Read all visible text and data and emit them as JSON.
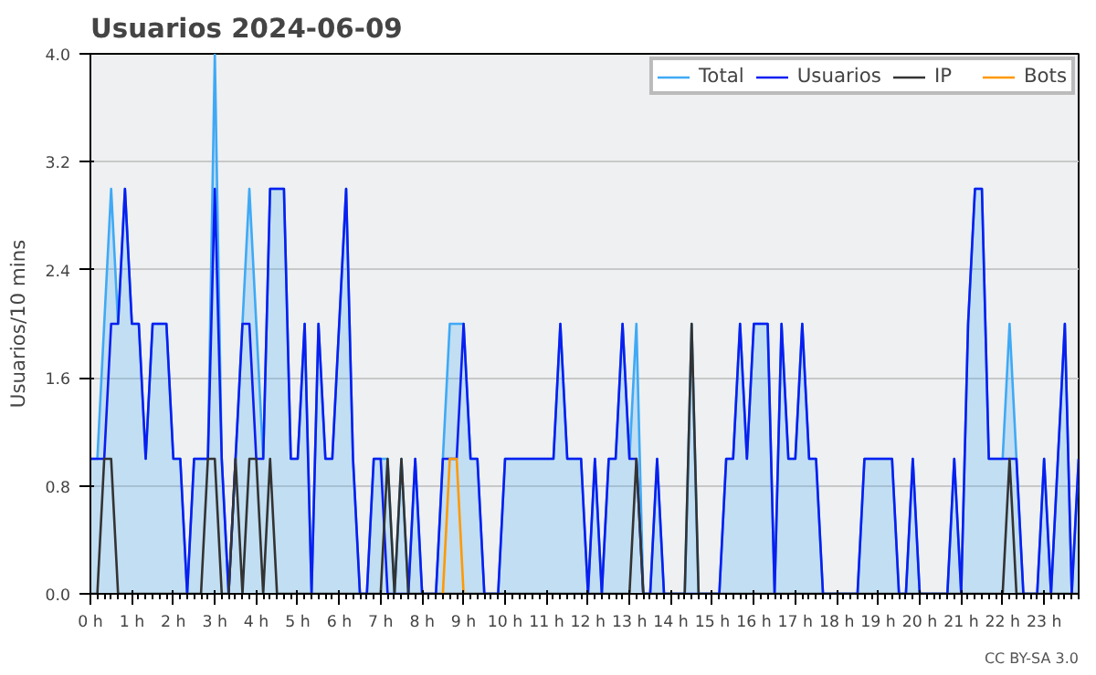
{
  "chart_data": {
    "type": "line",
    "title": "Usuarios  2024-06-09",
    "ylabel": "Usuarios/10 mins",
    "x": [
      0,
      0.167,
      0.333,
      0.5,
      0.667,
      0.833,
      1,
      1.167,
      1.333,
      1.5,
      1.667,
      1.833,
      2,
      2.167,
      2.333,
      2.5,
      2.667,
      2.833,
      3,
      3.167,
      3.333,
      3.5,
      3.667,
      3.833,
      4,
      4.167,
      4.333,
      4.5,
      4.667,
      4.833,
      5,
      5.167,
      5.333,
      5.5,
      5.667,
      5.833,
      6,
      6.167,
      6.333,
      6.5,
      6.667,
      6.833,
      7,
      7.167,
      7.333,
      7.5,
      7.667,
      7.833,
      8,
      8.167,
      8.333,
      8.5,
      8.667,
      8.833,
      9,
      9.167,
      9.333,
      9.5,
      9.667,
      9.833,
      10,
      10.167,
      10.333,
      10.5,
      10.667,
      10.833,
      11,
      11.167,
      11.333,
      11.5,
      11.667,
      11.833,
      12,
      12.167,
      12.333,
      12.5,
      12.667,
      12.833,
      13,
      13.167,
      13.333,
      13.5,
      13.667,
      13.833,
      14,
      14.167,
      14.333,
      14.5,
      14.667,
      14.833,
      15,
      15.167,
      15.333,
      15.5,
      15.667,
      15.833,
      16,
      16.167,
      16.333,
      16.5,
      16.667,
      16.833,
      17,
      17.167,
      17.333,
      17.5,
      17.667,
      17.833,
      18,
      18.167,
      18.333,
      18.5,
      18.667,
      18.833,
      19,
      19.167,
      19.333,
      19.5,
      19.667,
      19.833,
      20,
      20.167,
      20.333,
      20.5,
      20.667,
      20.833,
      21,
      21.167,
      21.333,
      21.5,
      21.667,
      21.833,
      22,
      22.167,
      22.333,
      22.5,
      22.667,
      22.833,
      23,
      23.167,
      23.333,
      23.5,
      23.667,
      23.833
    ],
    "series": [
      {
        "name": "Total",
        "type": "area",
        "color": "#3fa9f5",
        "values": [
          1,
          1,
          2,
          3,
          2,
          3,
          2,
          2,
          1,
          2,
          2,
          2,
          1,
          1,
          0,
          1,
          1,
          1,
          4,
          1,
          0,
          1,
          2,
          3,
          2,
          1,
          3,
          3,
          3,
          1,
          1,
          2,
          0,
          2,
          1,
          1,
          2,
          3,
          1,
          0,
          0,
          1,
          1,
          1,
          0,
          1,
          0,
          1,
          0,
          0,
          0,
          1,
          2,
          2,
          2,
          1,
          1,
          0,
          0,
          0,
          1,
          1,
          1,
          1,
          1,
          1,
          1,
          1,
          2,
          1,
          1,
          1,
          0,
          1,
          0,
          1,
          1,
          2,
          1,
          2,
          0,
          0,
          1,
          0,
          0,
          0,
          0,
          2,
          0,
          0,
          0,
          0,
          1,
          1,
          2,
          1,
          2,
          2,
          2,
          0,
          2,
          1,
          1,
          2,
          1,
          1,
          0,
          0,
          0,
          0,
          0,
          0,
          1,
          1,
          1,
          1,
          1,
          0,
          0,
          1,
          0,
          0,
          0,
          0,
          0,
          1,
          0,
          2,
          3,
          3,
          1,
          1,
          1,
          2,
          1,
          0,
          0,
          0,
          1,
          0,
          1,
          2,
          0,
          1
        ]
      },
      {
        "name": "Usuarios",
        "color": "#0a1ef0",
        "values": [
          1,
          1,
          1,
          2,
          2,
          3,
          2,
          2,
          1,
          2,
          2,
          2,
          1,
          1,
          0,
          1,
          1,
          1,
          3,
          1,
          0,
          1,
          2,
          2,
          1,
          1,
          3,
          3,
          3,
          1,
          1,
          2,
          0,
          2,
          1,
          1,
          2,
          3,
          1,
          0,
          0,
          1,
          1,
          0,
          0,
          0,
          0,
          1,
          0,
          0,
          0,
          1,
          1,
          1,
          2,
          1,
          1,
          0,
          0,
          0,
          1,
          1,
          1,
          1,
          1,
          1,
          1,
          1,
          2,
          1,
          1,
          1,
          0,
          1,
          0,
          1,
          1,
          2,
          1,
          1,
          0,
          0,
          1,
          0,
          0,
          0,
          0,
          0,
          0,
          0,
          0,
          0,
          1,
          1,
          2,
          1,
          2,
          2,
          2,
          0,
          2,
          1,
          1,
          2,
          1,
          1,
          0,
          0,
          0,
          0,
          0,
          0,
          1,
          1,
          1,
          1,
          1,
          0,
          0,
          1,
          0,
          0,
          0,
          0,
          0,
          1,
          0,
          2,
          3,
          3,
          1,
          1,
          1,
          1,
          1,
          0,
          0,
          0,
          1,
          0,
          1,
          2,
          0,
          1
        ]
      },
      {
        "name": "IP",
        "color": "#333333",
        "values": [
          0,
          0,
          1,
          1,
          0,
          0,
          0,
          0,
          0,
          0,
          0,
          0,
          0,
          0,
          0,
          0,
          0,
          1,
          1,
          0,
          0,
          1,
          0,
          1,
          1,
          0,
          1,
          0,
          0,
          0,
          0,
          0,
          0,
          0,
          0,
          0,
          0,
          0,
          0,
          0,
          0,
          0,
          0,
          1,
          0,
          1,
          0,
          0,
          0,
          0,
          0,
          0,
          0,
          0,
          0,
          0,
          0,
          0,
          0,
          0,
          0,
          0,
          0,
          0,
          0,
          0,
          0,
          0,
          0,
          0,
          0,
          0,
          0,
          0,
          0,
          0,
          0,
          0,
          0,
          1,
          0,
          0,
          0,
          0,
          0,
          0,
          0,
          2,
          0,
          0,
          0,
          0,
          0,
          0,
          0,
          0,
          0,
          0,
          0,
          0,
          0,
          0,
          0,
          0,
          0,
          0,
          0,
          0,
          0,
          0,
          0,
          0,
          0,
          0,
          0,
          0,
          0,
          0,
          0,
          0,
          0,
          0,
          0,
          0,
          0,
          0,
          0,
          0,
          0,
          0,
          0,
          0,
          0,
          1,
          0,
          0,
          0,
          0,
          0,
          0,
          0,
          0,
          0,
          0
        ]
      },
      {
        "name": "Bots",
        "color": "#ff9900",
        "values": [
          null,
          null,
          null,
          null,
          null,
          null,
          null,
          null,
          null,
          null,
          null,
          null,
          null,
          null,
          null,
          null,
          null,
          null,
          null,
          null,
          null,
          null,
          null,
          null,
          null,
          null,
          null,
          null,
          null,
          null,
          null,
          null,
          null,
          null,
          null,
          null,
          null,
          null,
          null,
          null,
          null,
          null,
          null,
          null,
          null,
          null,
          null,
          null,
          null,
          null,
          null,
          0,
          1,
          1,
          0,
          null,
          null,
          null,
          null,
          null,
          null,
          null,
          null,
          null,
          null,
          null,
          null,
          null,
          null,
          null,
          null,
          null,
          null,
          null,
          null,
          null,
          null,
          null,
          null,
          null,
          null,
          null,
          null,
          null,
          null,
          null,
          null,
          null,
          null,
          null,
          null,
          null,
          null,
          null,
          null,
          null,
          null,
          null,
          null,
          null,
          null,
          null,
          null,
          null,
          null,
          null,
          null,
          null,
          null,
          null,
          null,
          null,
          null,
          null,
          null,
          null,
          null,
          null,
          null,
          null,
          null,
          null,
          null,
          null,
          null,
          null,
          null,
          null,
          null,
          null,
          null,
          null,
          null,
          null,
          null,
          null,
          null,
          null,
          null,
          null,
          null,
          null,
          null,
          null
        ]
      }
    ],
    "xlim": [
      0,
      23.833
    ],
    "xticks": [
      {
        "value": 0,
        "label": "0 h"
      },
      {
        "value": 1,
        "label": "1 h"
      },
      {
        "value": 2,
        "label": "2 h"
      },
      {
        "value": 3,
        "label": "3 h"
      },
      {
        "value": 4,
        "label": "4 h"
      },
      {
        "value": 5,
        "label": "5 h"
      },
      {
        "value": 6,
        "label": "6 h"
      },
      {
        "value": 7,
        "label": "7 h"
      },
      {
        "value": 8,
        "label": "8 h"
      },
      {
        "value": 9,
        "label": "9 h"
      },
      {
        "value": 10,
        "label": "10 h"
      },
      {
        "value": 11,
        "label": "11 h"
      },
      {
        "value": 12,
        "label": "12 h"
      },
      {
        "value": 13,
        "label": "13 h"
      },
      {
        "value": 14,
        "label": "14 h"
      },
      {
        "value": 15,
        "label": "15 h"
      },
      {
        "value": 16,
        "label": "16 h"
      },
      {
        "value": 17,
        "label": "17 h"
      },
      {
        "value": 18,
        "label": "18 h"
      },
      {
        "value": 19,
        "label": "19 h"
      },
      {
        "value": 20,
        "label": "20 h"
      },
      {
        "value": 21,
        "label": "21 h"
      },
      {
        "value": 22,
        "label": "22 h"
      },
      {
        "value": 23,
        "label": "23 h"
      }
    ],
    "ylim": [
      0,
      4
    ],
    "yticks": [
      {
        "value": 0,
        "label": "0.0"
      },
      {
        "value": 0.8,
        "label": "0.8"
      },
      {
        "value": 1.6,
        "label": "1.6"
      },
      {
        "value": 2.4,
        "label": "2.4"
      },
      {
        "value": 3.2,
        "label": "3.2"
      },
      {
        "value": 4,
        "label": "4.0"
      }
    ],
    "grid": "y",
    "legend": "top right",
    "annotations": [
      "CC BY-SA 3.0"
    ]
  }
}
